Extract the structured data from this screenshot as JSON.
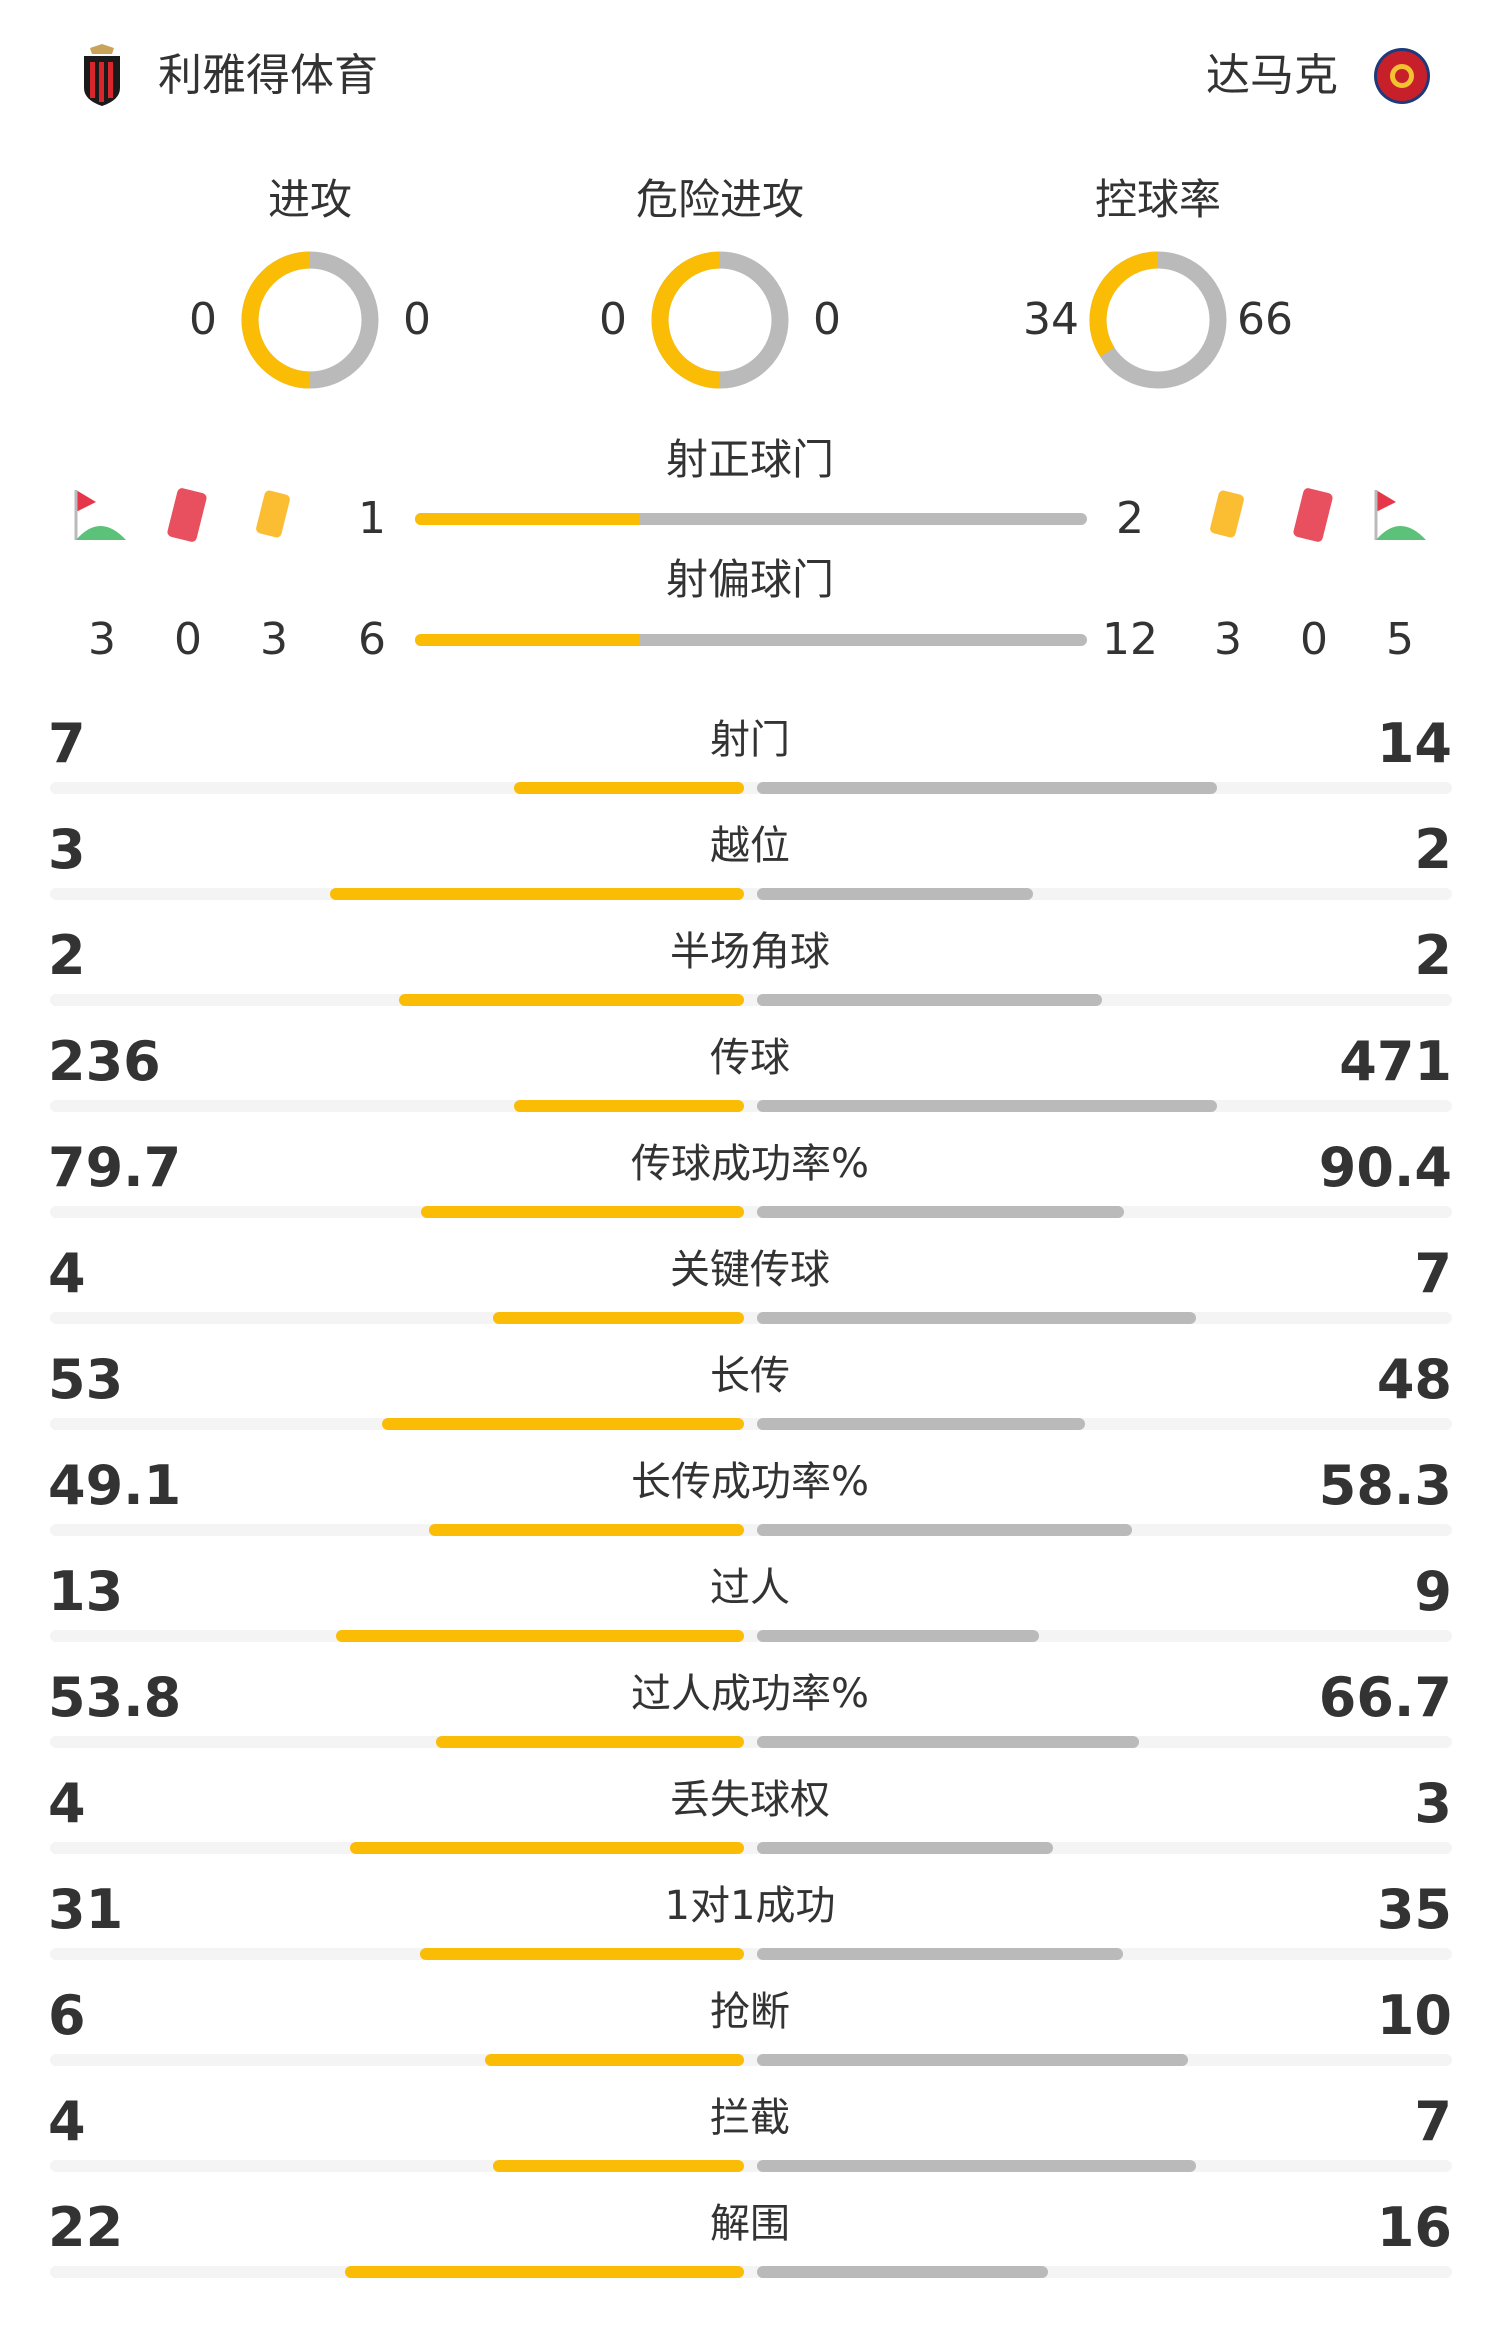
{
  "home": {
    "name": "利雅得体育"
  },
  "away": {
    "name": "达马克"
  },
  "colors": {
    "home": "#fbbc05",
    "away": "#bababa",
    "track": "#f4f4f4"
  },
  "donuts": [
    {
      "label": "进攻",
      "home": "0",
      "away": "0"
    },
    {
      "label": "危险进攻",
      "home": "0",
      "away": "0"
    },
    {
      "label": "控球率",
      "home": "34",
      "away": "66"
    }
  ],
  "shots_on_target": {
    "label": "射正球门",
    "home": "1",
    "away": "2"
  },
  "shots_off_target": {
    "label": "射偏球门",
    "home": "6",
    "away": "12"
  },
  "cards": {
    "home": {
      "corners": "3",
      "red": "0",
      "yellow": "3"
    },
    "away": {
      "yellow": "3",
      "red": "0",
      "corners": "5"
    }
  },
  "stats": [
    {
      "label": "射门",
      "home": "7",
      "away": "14"
    },
    {
      "label": "越位",
      "home": "3",
      "away": "2"
    },
    {
      "label": "半场角球",
      "home": "2",
      "away": "2"
    },
    {
      "label": "传球",
      "home": "236",
      "away": "471"
    },
    {
      "label": "传球成功率%",
      "home": "79.7",
      "away": "90.4"
    },
    {
      "label": "关键传球",
      "home": "4",
      "away": "7"
    },
    {
      "label": "长传",
      "home": "53",
      "away": "48"
    },
    {
      "label": "长传成功率%",
      "home": "49.1",
      "away": "58.3"
    },
    {
      "label": "过人",
      "home": "13",
      "away": "9"
    },
    {
      "label": "过人成功率%",
      "home": "53.8",
      "away": "66.7"
    },
    {
      "label": "丢失球权",
      "home": "4",
      "away": "3"
    },
    {
      "label": "1对1成功",
      "home": "31",
      "away": "35"
    },
    {
      "label": "抢断",
      "home": "6",
      "away": "10"
    },
    {
      "label": "拦截",
      "home": "4",
      "away": "7"
    },
    {
      "label": "解围",
      "home": "22",
      "away": "16"
    }
  ]
}
